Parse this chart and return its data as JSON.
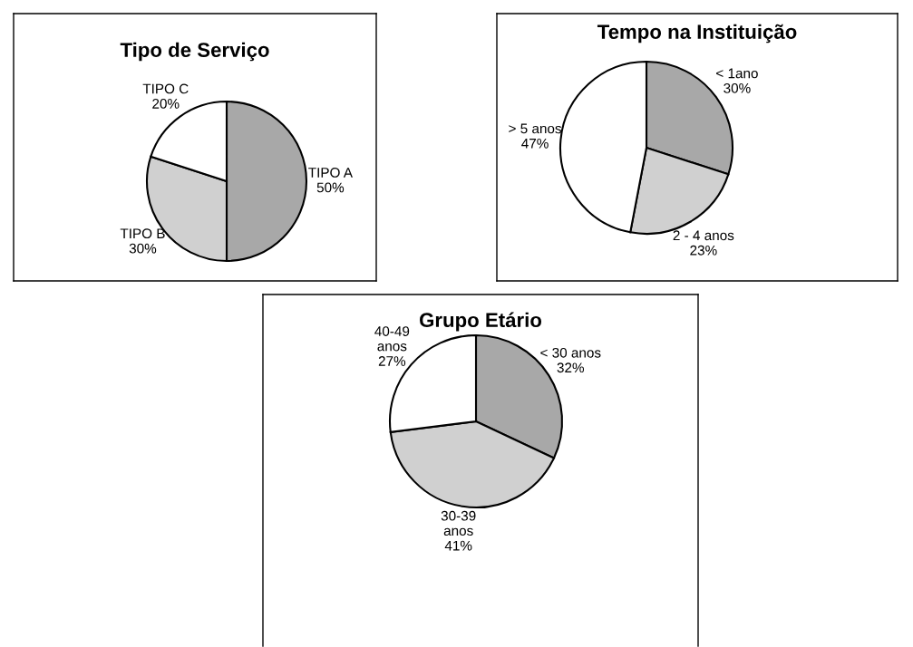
{
  "chart_data": [
    {
      "type": "pie",
      "title": "Tipo de Serviço",
      "categories": [
        "TIPO A",
        "TIPO B",
        "TIPO C"
      ],
      "values": [
        50,
        30,
        20
      ],
      "value_labels": [
        "50%",
        "30%",
        "20%"
      ],
      "colors": [
        "#a8a8a8",
        "#d0d0d0",
        "#ffffff"
      ],
      "legend": false
    },
    {
      "type": "pie",
      "title": "Tempo na Instituição",
      "categories": [
        "< 1ano",
        "2 - 4 anos",
        "> 5 anos"
      ],
      "values": [
        30,
        23,
        47
      ],
      "value_labels": [
        "30%",
        "23%",
        "47%"
      ],
      "colors": [
        "#a8a8a8",
        "#d0d0d0",
        "#ffffff"
      ],
      "legend": false
    },
    {
      "type": "pie",
      "title": "Grupo Etário",
      "categories": [
        "< 30 anos",
        "30-39\nanos",
        "40-49\nanos"
      ],
      "values": [
        32,
        41,
        27
      ],
      "value_labels": [
        "32%",
        "41%",
        "27%"
      ],
      "colors": [
        "#a8a8a8",
        "#d0d0d0",
        "#ffffff"
      ],
      "legend": false
    }
  ]
}
